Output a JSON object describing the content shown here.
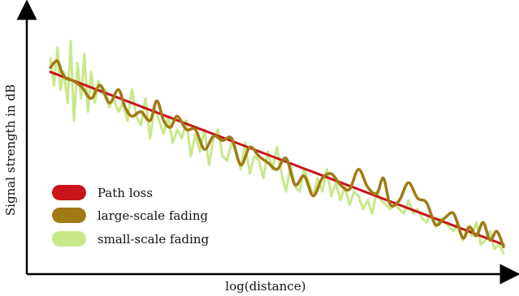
{
  "chart_data": {
    "type": "line",
    "title": "",
    "xlabel": "log(distance)",
    "ylabel": "Signal strength in dB",
    "xlim": [
      0,
      100
    ],
    "ylim": [
      0,
      100
    ],
    "grid": false,
    "ticks": "none",
    "legend_position": "bottom-left",
    "series": [
      {
        "name": "Path loss",
        "color": "#c8141a",
        "x": [
          0,
          100
        ],
        "y": [
          84,
          6
        ]
      },
      {
        "name": "large-scale fading",
        "color": "#a07a14",
        "x": [
          0,
          1.5,
          2.5,
          3.5,
          5,
          7,
          9,
          11,
          13,
          15,
          16.5,
          18,
          20,
          22,
          23.5,
          25,
          26.5,
          28,
          30,
          32,
          34,
          36,
          38,
          40,
          42,
          44,
          46,
          48,
          50,
          52,
          54,
          56,
          58,
          60,
          62,
          64,
          66,
          68,
          70,
          72,
          73.5,
          75,
          77,
          79,
          81,
          83,
          85,
          87,
          89,
          91,
          92.5,
          94,
          95.5,
          97,
          98.5,
          100
        ],
        "y": [
          86,
          89,
          84,
          81,
          80,
          77,
          72,
          78,
          70,
          76,
          68,
          64,
          66,
          62,
          71,
          62,
          59,
          64,
          58,
          58,
          49,
          55,
          53,
          54,
          42,
          50,
          46,
          43,
          40,
          45,
          33,
          37,
          28,
          36,
          38,
          33,
          31,
          40,
          32,
          29,
          36,
          24,
          26,
          34,
          27,
          25,
          15,
          18,
          20,
          9,
          14,
          10,
          16,
          8,
          12,
          5
        ]
      },
      {
        "name": "small-scale fading",
        "color": "#c8e88a",
        "x": [
          0,
          0.8,
          1.6,
          2.2,
          3,
          3.8,
          4.5,
          5.2,
          6,
          6.8,
          7.5,
          8.3,
          9,
          9.8,
          10.6,
          11.4,
          12.2,
          13,
          14,
          15,
          16,
          17,
          18,
          19,
          20,
          21,
          22,
          23,
          24,
          25,
          26,
          27,
          28,
          29,
          30,
          31,
          32,
          33,
          34,
          35,
          36,
          37,
          38,
          39,
          40,
          41,
          42,
          43,
          44,
          45,
          46,
          47,
          48,
          49,
          50,
          51,
          52,
          53,
          54,
          55,
          56,
          57,
          58,
          59,
          60,
          61,
          62,
          63,
          64,
          65,
          66,
          67,
          68,
          69,
          70,
          71,
          72,
          73,
          74,
          75,
          76,
          77,
          78,
          79,
          80,
          81,
          82,
          83,
          84,
          85,
          86,
          87,
          88,
          89,
          90,
          91,
          92,
          93,
          94,
          95,
          96,
          97,
          98,
          99,
          100
        ],
        "y": [
          90,
          78,
          95,
          76,
          84,
          70,
          98,
          62,
          88,
          72,
          92,
          66,
          84,
          70,
          80,
          74,
          76,
          68,
          72,
          66,
          70,
          62,
          76,
          64,
          60,
          72,
          54,
          68,
          62,
          56,
          64,
          52,
          58,
          54,
          62,
          46,
          56,
          48,
          58,
          42,
          54,
          58,
          46,
          44,
          52,
          48,
          40,
          52,
          38,
          46,
          44,
          36,
          48,
          40,
          50,
          38,
          30,
          42,
          32,
          30,
          40,
          34,
          28,
          36,
          30,
          40,
          28,
          34,
          26,
          32,
          24,
          30,
          28,
          22,
          26,
          20,
          30,
          26,
          24,
          22,
          24,
          22,
          20,
          26,
          20,
          22,
          18,
          16,
          20,
          14,
          18,
          16,
          14,
          12,
          16,
          8,
          14,
          10,
          16,
          6,
          8,
          12,
          4,
          6,
          2
        ]
      }
    ]
  }
}
